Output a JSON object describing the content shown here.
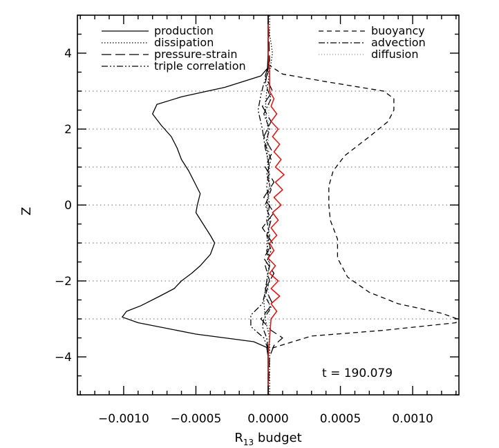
{
  "chart_data": {
    "type": "line",
    "xlabel_main": "R",
    "xlabel_sub": "13",
    "xlabel_tail": " budget",
    "ylabel": "Z",
    "annotation": "t = 190.079",
    "xlim": [
      -0.00132,
      0.00132
    ],
    "ylim": [
      -5,
      5
    ],
    "x_ticks": [
      -0.001,
      -0.0005,
      0.0,
      0.0005,
      0.001
    ],
    "x_tick_labels": [
      "−0.0010",
      "−0.0005",
      "0.0000",
      "0.0005",
      "0.0010"
    ],
    "y_ticks": [
      -4,
      -2,
      0,
      2,
      4
    ],
    "y_tick_labels": [
      "−4",
      "−2",
      "0",
      "2",
      "4"
    ],
    "gridlines_y": [
      -3,
      -2,
      -1,
      0,
      1,
      2,
      3
    ],
    "grid": "horizontal dotted",
    "legend_placement": "top",
    "series": [
      {
        "name": "production",
        "style": "solid",
        "color": "#000000",
        "points": [
          [
            0,
            -5
          ],
          [
            0,
            -4.0
          ],
          [
            -1e-05,
            -3.75
          ],
          [
            -0.0001,
            -3.6
          ],
          [
            -0.0005,
            -3.4
          ],
          [
            -0.0009,
            -3.1
          ],
          [
            -0.00101,
            -2.95
          ],
          [
            -0.00098,
            -2.8
          ],
          [
            -0.00088,
            -2.65
          ],
          [
            -0.00075,
            -2.4
          ],
          [
            -0.00065,
            -2.2
          ],
          [
            -0.0006,
            -2.0
          ],
          [
            -0.00053,
            -1.8
          ],
          [
            -0.00047,
            -1.6
          ],
          [
            -0.0004,
            -1.3
          ],
          [
            -0.00037,
            -1.0
          ],
          [
            -0.0004,
            -0.8
          ],
          [
            -0.00045,
            -0.5
          ],
          [
            -0.0005,
            -0.2
          ],
          [
            -0.00049,
            0.0
          ],
          [
            -0.00047,
            0.3
          ],
          [
            -0.00051,
            0.6
          ],
          [
            -0.00055,
            0.9
          ],
          [
            -0.0006,
            1.2
          ],
          [
            -0.00063,
            1.5
          ],
          [
            -0.00067,
            1.8
          ],
          [
            -0.00074,
            2.1
          ],
          [
            -0.0008,
            2.4
          ],
          [
            -0.00077,
            2.65
          ],
          [
            -0.0006,
            2.85
          ],
          [
            -0.0003,
            3.1
          ],
          [
            -5e-05,
            3.4
          ],
          [
            -5e-06,
            3.6
          ],
          [
            0,
            4.0
          ],
          [
            0,
            5
          ]
        ]
      },
      {
        "name": "dissipation",
        "style": "dotted",
        "color": "#000000",
        "points": [
          [
            1e-05,
            -5
          ],
          [
            1e-05,
            -3.5
          ],
          [
            -2e-05,
            -3.0
          ],
          [
            -3e-05,
            -2.5
          ],
          [
            -1e-05,
            -2.0
          ],
          [
            1e-05,
            -1.5
          ],
          [
            -1e-05,
            -1.0
          ],
          [
            1e-05,
            -0.5
          ],
          [
            -1e-05,
            0.0
          ],
          [
            1e-05,
            0.5
          ],
          [
            0.0,
            1.0
          ],
          [
            -1e-05,
            1.5
          ],
          [
            0.0,
            2.0
          ],
          [
            -2e-05,
            2.5
          ],
          [
            -1e-05,
            3.0
          ],
          [
            1e-05,
            3.5
          ],
          [
            3e-05,
            4.0
          ],
          [
            1e-05,
            4.5
          ],
          [
            1e-05,
            5
          ]
        ]
      },
      {
        "name": "pressure-strain",
        "style": "long-dash",
        "color": "#000000",
        "points": [
          [
            0,
            -5
          ],
          [
            1e-05,
            -4.0
          ],
          [
            4e-05,
            -3.7
          ],
          [
            0.0001,
            -3.5
          ],
          [
            2e-05,
            -3.3
          ],
          [
            -5e-05,
            -3.0
          ],
          [
            3e-05,
            -2.6
          ],
          [
            -2e-05,
            -2.2
          ],
          [
            4e-05,
            -1.8
          ],
          [
            -3e-05,
            -1.4
          ],
          [
            3e-05,
            -1.0
          ],
          [
            -4e-05,
            -0.6
          ],
          [
            4e-05,
            -0.2
          ],
          [
            -3e-05,
            0.2
          ],
          [
            4e-05,
            0.6
          ],
          [
            -2e-05,
            1.0
          ],
          [
            3e-05,
            1.4
          ],
          [
            -3e-05,
            1.8
          ],
          [
            2e-05,
            2.2
          ],
          [
            -4e-05,
            2.6
          ],
          [
            3e-05,
            3.0
          ],
          [
            -2e-05,
            3.4
          ],
          [
            1e-05,
            3.8
          ],
          [
            0,
            5
          ]
        ]
      },
      {
        "name": "triple correlation",
        "style": "dash-dot-dot",
        "color": "#000000",
        "points": [
          [
            0,
            -5
          ],
          [
            0,
            -3.8
          ],
          [
            -3e-05,
            -3.5
          ],
          [
            -0.00012,
            -3.2
          ],
          [
            -0.00012,
            -2.9
          ],
          [
            -4e-05,
            -2.6
          ],
          [
            -2e-05,
            -2.3
          ],
          [
            -1e-05,
            -2.0
          ],
          [
            1e-05,
            -1.6
          ],
          [
            -1e-05,
            -1.2
          ],
          [
            1e-05,
            -0.8
          ],
          [
            -1e-05,
            -0.4
          ],
          [
            1e-05,
            0.0
          ],
          [
            -1e-05,
            0.5
          ],
          [
            1e-05,
            1.0
          ],
          [
            -2e-05,
            1.5
          ],
          [
            -4e-05,
            2.0
          ],
          [
            -7e-05,
            2.5
          ],
          [
            -5e-05,
            2.9
          ],
          [
            -3e-05,
            3.2
          ],
          [
            0,
            3.5
          ],
          [
            0,
            5
          ]
        ]
      },
      {
        "name": "buoyancy",
        "style": "short-dash",
        "color": "#000000",
        "points": [
          [
            0,
            -5
          ],
          [
            0,
            -3.8
          ],
          [
            0.0003,
            -3.45
          ],
          [
            0.0008,
            -3.3
          ],
          [
            0.0013,
            -3.1
          ],
          [
            0.00131,
            -3.0
          ],
          [
            0.0012,
            -2.85
          ],
          [
            0.0009,
            -2.6
          ],
          [
            0.0007,
            -2.3
          ],
          [
            0.00055,
            -1.9
          ],
          [
            0.00048,
            -1.4
          ],
          [
            0.00048,
            -0.9
          ],
          [
            0.00043,
            -0.4
          ],
          [
            0.00042,
            0.0
          ],
          [
            0.00042,
            0.5
          ],
          [
            0.00045,
            0.9
          ],
          [
            0.00053,
            1.3
          ],
          [
            0.0007,
            1.8
          ],
          [
            0.00083,
            2.2
          ],
          [
            0.00087,
            2.5
          ],
          [
            0.00087,
            2.8
          ],
          [
            0.0008,
            3.0
          ],
          [
            0.0004,
            3.25
          ],
          [
            0.0001,
            3.45
          ],
          [
            0,
            3.7
          ],
          [
            0,
            5
          ]
        ]
      },
      {
        "name": "advection",
        "style": "dash-dot",
        "color": "#000000",
        "points": [
          [
            0,
            -5
          ],
          [
            0,
            -3.8
          ],
          [
            -1e-05,
            -3.5
          ],
          [
            -4e-05,
            -3.2
          ],
          [
            -3e-05,
            -3.0
          ],
          [
            2e-05,
            -2.7
          ],
          [
            -2e-05,
            -2.4
          ],
          [
            1e-05,
            -2.0
          ],
          [
            -2e-05,
            -1.6
          ],
          [
            2e-05,
            -1.2
          ],
          [
            -1e-05,
            -0.8
          ],
          [
            2e-05,
            -0.4
          ],
          [
            -2e-05,
            0.0
          ],
          [
            2e-05,
            0.4
          ],
          [
            -1e-05,
            0.8
          ],
          [
            2e-05,
            1.2
          ],
          [
            -2e-05,
            1.6
          ],
          [
            1e-05,
            2.0
          ],
          [
            -3e-05,
            2.4
          ],
          [
            2e-05,
            2.8
          ],
          [
            -2e-05,
            3.2
          ],
          [
            0,
            3.6
          ],
          [
            0,
            5
          ]
        ]
      },
      {
        "name": "diffusion",
        "style": "fine-dot",
        "color": "#000000",
        "points": [
          [
            0,
            -5
          ],
          [
            0,
            -4.0
          ],
          [
            1e-05,
            -3.0
          ],
          [
            0,
            -2.0
          ],
          [
            1e-05,
            -1.0
          ],
          [
            0,
            0.0
          ],
          [
            1e-05,
            1.0
          ],
          [
            0,
            2.0
          ],
          [
            1e-05,
            3.0
          ],
          [
            0,
            4.0
          ],
          [
            0,
            5
          ]
        ]
      },
      {
        "name": "",
        "style": "solid",
        "color": "#dd1111",
        "points": [
          [
            0,
            -5
          ],
          [
            0,
            -4.0
          ],
          [
            1e-05,
            -3.5
          ],
          [
            2e-05,
            -3.0
          ],
          [
            6e-05,
            -2.8
          ],
          [
            2e-05,
            -2.6
          ],
          [
            8e-05,
            -2.4
          ],
          [
            2e-05,
            -2.2
          ],
          [
            7e-05,
            -2.0
          ],
          [
            1e-05,
            -1.8
          ],
          [
            5e-05,
            -1.6
          ],
          [
            0.0,
            -1.4
          ],
          [
            4e-05,
            -1.2
          ],
          [
            1e-05,
            -1.0
          ],
          [
            6e-05,
            -0.8
          ],
          [
            2e-05,
            -0.6
          ],
          [
            7e-05,
            -0.4
          ],
          [
            3e-05,
            -0.2
          ],
          [
            9e-05,
            0.0
          ],
          [
            4e-05,
            0.2
          ],
          [
            0.0001,
            0.4
          ],
          [
            5e-05,
            0.6
          ],
          [
            0.00011,
            0.8
          ],
          [
            5e-05,
            1.0
          ],
          [
            9e-05,
            1.2
          ],
          [
            4e-05,
            1.4
          ],
          [
            8e-05,
            1.6
          ],
          [
            3e-05,
            1.8
          ],
          [
            7e-05,
            2.0
          ],
          [
            2e-05,
            2.2
          ],
          [
            6e-05,
            2.4
          ],
          [
            2e-05,
            2.6
          ],
          [
            4e-05,
            2.8
          ],
          [
            1e-05,
            3.0
          ],
          [
            1e-05,
            3.5
          ],
          [
            0,
            4.0
          ],
          [
            0,
            5
          ]
        ]
      }
    ]
  }
}
